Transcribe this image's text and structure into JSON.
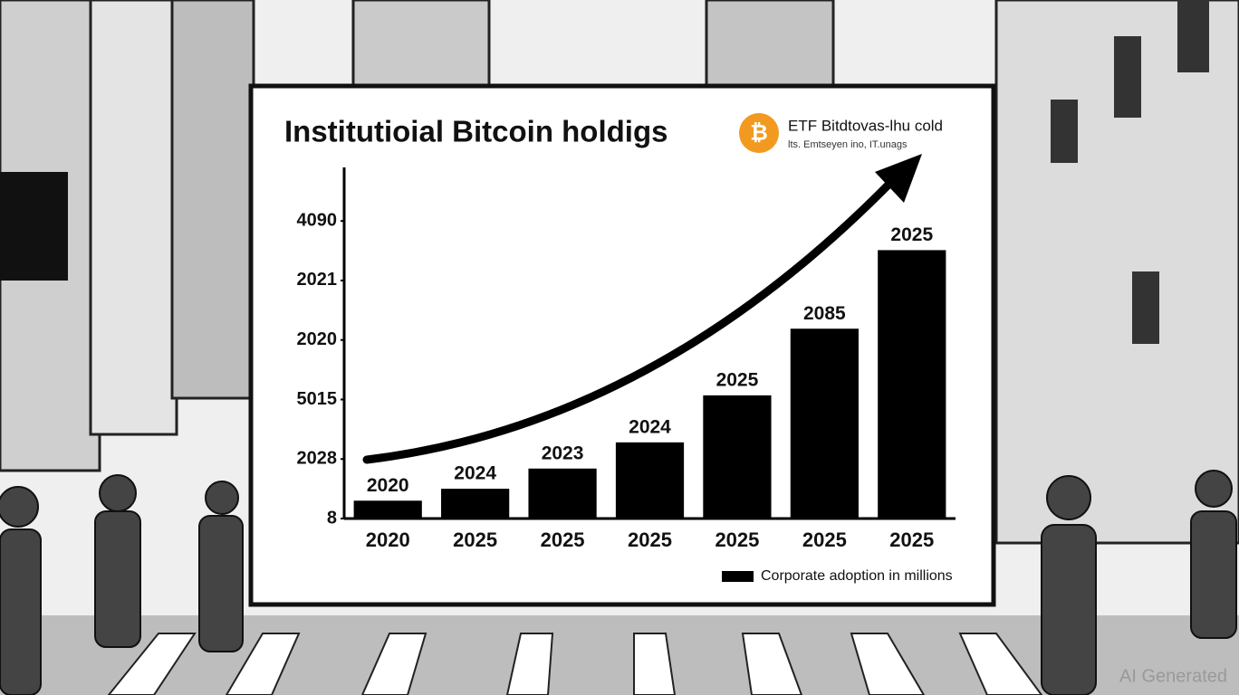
{
  "chart_data": {
    "type": "bar",
    "title": "Institutioial Bitcoin holdigs",
    "badge": {
      "icon": "₿",
      "title": "ETF Bitdtovas-lhu cold",
      "subtitle": "lts. Emtseyen ino, IT.unags"
    },
    "categories": [
      "2020",
      "2025",
      "2025",
      "2025",
      "2025",
      "2025",
      "2025"
    ],
    "series": [
      {
        "name": "Corporate adoption in millions",
        "color": "#000000",
        "values": [
          0.3,
          0.5,
          0.84,
          1.28,
          2.07,
          3.19,
          4.51
        ]
      }
    ],
    "bar_labels": [
      "2020",
      "2024",
      "2023",
      "2024",
      "2025",
      "2085",
      "2025"
    ],
    "ylim": [
      0,
      5.9
    ],
    "yticks": [
      {
        "value": 0,
        "label": "8"
      },
      {
        "value": 1,
        "label": "2028"
      },
      {
        "value": 2,
        "label": "5015"
      },
      {
        "value": 3,
        "label": "2020"
      },
      {
        "value": 4,
        "label": "2021"
      },
      {
        "value": 5,
        "label": "4090"
      }
    ],
    "legend": "bottom-right",
    "watermark": "AI Generated"
  }
}
